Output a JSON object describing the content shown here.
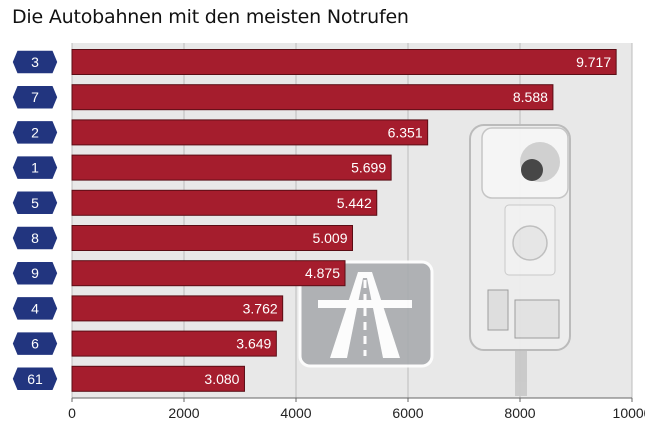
{
  "chart_data": {
    "type": "bar",
    "orientation": "horizontal",
    "title": "Die Autobahnen mit den meisten Notrufen",
    "xlabel": "",
    "ylabel": "",
    "categories": [
      "3",
      "7",
      "2",
      "1",
      "5",
      "8",
      "9",
      "4",
      "6",
      "61"
    ],
    "values": [
      9717,
      8588,
      6351,
      5699,
      5442,
      5009,
      4875,
      3762,
      3649,
      3080
    ],
    "value_labels": [
      "9.717",
      "8.588",
      "6.351",
      "5.699",
      "5.442",
      "5.009",
      "4.875",
      "3.762",
      "3.649",
      "3.080"
    ],
    "xlim": [
      0,
      10000
    ],
    "xticks": [
      0,
      2000,
      4000,
      6000,
      8000,
      10000
    ],
    "xtick_labels": [
      "0",
      "2000",
      "4000",
      "6000",
      "8000",
      "10000"
    ],
    "grid": true,
    "legend": "none"
  },
  "colors": {
    "bar": "#a51d2d",
    "bar_edge": "#5a0d15",
    "badge": "#22357f",
    "badge_text": "#ffffff",
    "plot_bg": "#e8e8e8",
    "grid": "#bdbdbd"
  },
  "decorations": [
    "autobahn-sign-icon",
    "emergency-call-box-icon"
  ]
}
